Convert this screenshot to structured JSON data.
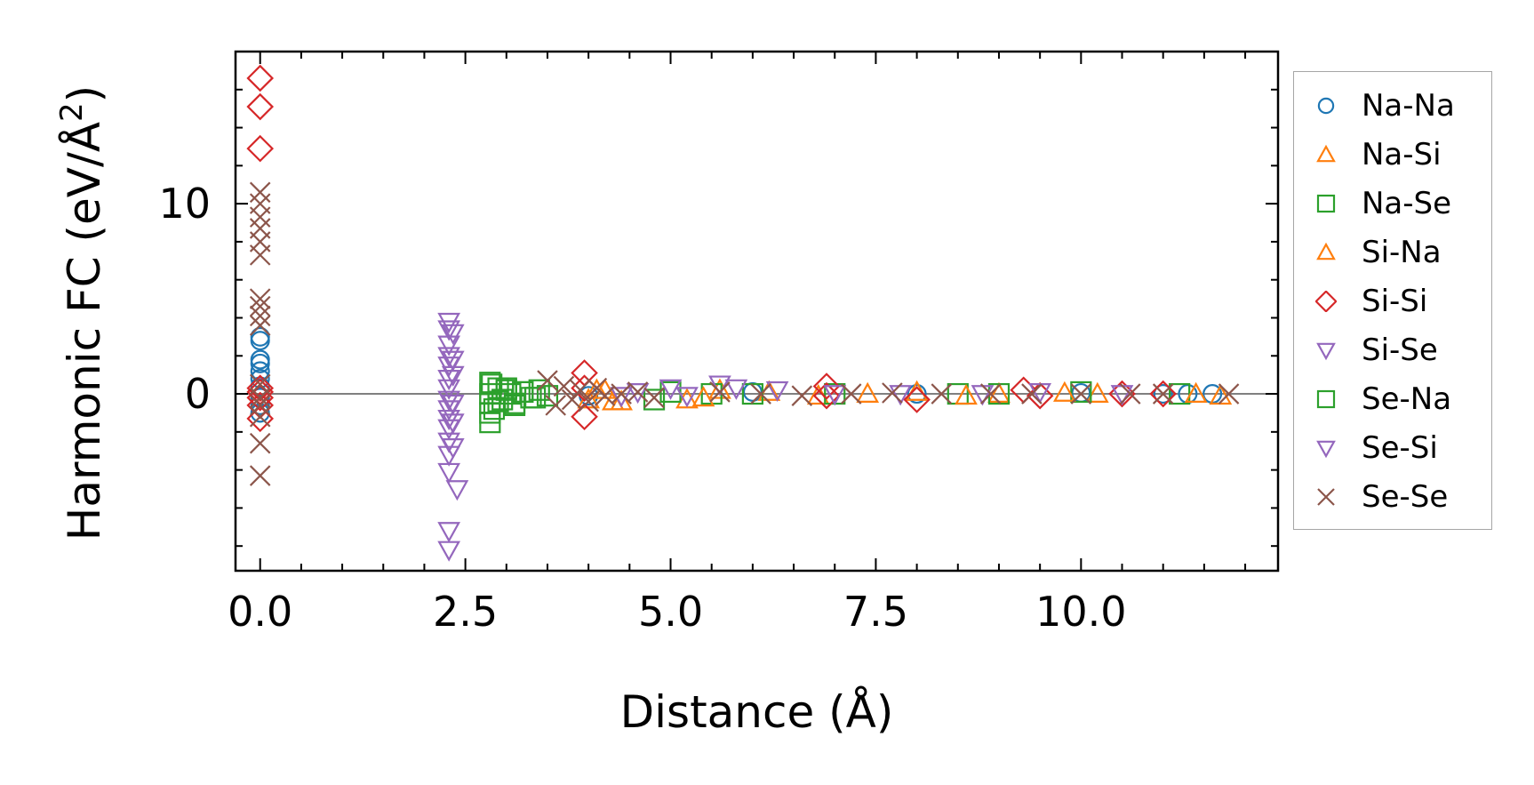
{
  "chart_data": {
    "type": "scatter",
    "xlabel": "Distance (Å)",
    "ylabel_base": "Harmonic FC (eV/Å",
    "ylabel_sup": "2",
    "ylabel_close": ")",
    "xlim": [
      -0.3,
      12.4
    ],
    "ylim": [
      -9.3,
      18.0
    ],
    "xticks": [
      0.0,
      2.5,
      5.0,
      7.5,
      10.0
    ],
    "xtick_labels": [
      "0.0",
      "2.5",
      "5.0",
      "7.5",
      "10.0"
    ],
    "yticks": [
      0,
      10
    ],
    "ytick_labels": [
      "0",
      "10"
    ],
    "zero_line": 0,
    "legend_position": "outside-right",
    "series": [
      {
        "name": "Na-Na",
        "marker": "circle",
        "color": "#1f77b4",
        "x": [
          0,
          0,
          0,
          0,
          0,
          0,
          0,
          0,
          0,
          0,
          4.0,
          6.0,
          8.0,
          10.0,
          11.0,
          11.3,
          11.6
        ],
        "y": [
          3.0,
          2.8,
          1.8,
          1.6,
          1.2,
          0.8,
          0.4,
          -0.2,
          -0.6,
          -1.0,
          -0.1,
          0.1,
          0.0,
          0.05,
          0.0,
          0.0,
          0.0
        ]
      },
      {
        "name": "Na-Si",
        "marker": "triangle-up",
        "color": "#ff7f0e",
        "x": [
          4.0,
          4.2,
          4.4,
          5.2,
          5.6,
          6.8,
          8.0,
          9.0,
          10.2,
          11.7
        ],
        "y": [
          -0.3,
          0.2,
          -0.4,
          -0.3,
          0.2,
          -0.1,
          0.1,
          0.0,
          0.0,
          -0.1
        ]
      },
      {
        "name": "Na-Se",
        "marker": "square",
        "color": "#2ca02c",
        "x": [
          2.8,
          2.8,
          2.8,
          2.8,
          2.8,
          2.85,
          2.9,
          2.95,
          3.0,
          3.05,
          3.1,
          3.2,
          3.3,
          3.4,
          3.5,
          4.8,
          5.0,
          5.5,
          7.0,
          8.5,
          10.0,
          11.2
        ],
        "y": [
          -1.5,
          -1.0,
          -0.5,
          0.0,
          0.6,
          -0.8,
          0.3,
          -0.3,
          0.2,
          0.0,
          -0.5,
          0.1,
          -0.2,
          0.2,
          -0.1,
          -0.3,
          0.1,
          0.0,
          0.0,
          0.0,
          0.1,
          0.0
        ]
      },
      {
        "name": "Si-Na",
        "marker": "triangle-up",
        "color": "#ff7f0e",
        "x": [
          4.1,
          4.3,
          5.4,
          6.2,
          7.4,
          8.6,
          9.8,
          11.4
        ],
        "y": [
          0.2,
          -0.4,
          -0.2,
          0.1,
          0.0,
          -0.1,
          0.05,
          0.0
        ]
      },
      {
        "name": "Si-Si",
        "marker": "diamond",
        "color": "#d62728",
        "x": [
          0,
          0,
          0,
          0,
          0,
          0,
          0,
          0,
          3.95,
          3.95,
          3.95,
          6.9,
          6.9,
          8.0,
          9.3,
          9.5,
          10.5,
          11.0
        ],
        "y": [
          16.6,
          15.1,
          12.9,
          0.3,
          0.1,
          -0.2,
          -0.6,
          -1.3,
          1.1,
          0.3,
          -1.2,
          0.4,
          -0.1,
          -0.3,
          0.2,
          -0.1,
          0.0,
          0.0
        ]
      },
      {
        "name": "Si-Se",
        "marker": "triangle-down",
        "color": "#9467bd",
        "x": [
          2.3,
          2.3,
          2.3,
          2.3,
          2.3,
          2.3,
          2.3,
          2.3,
          2.3,
          2.3,
          2.3,
          2.3,
          2.3,
          2.3,
          2.3,
          2.3,
          4.4,
          5.0,
          5.6,
          6.3,
          7.8,
          9.5
        ],
        "y": [
          3.8,
          3.4,
          2.6,
          2.0,
          1.5,
          0.8,
          0.3,
          -0.3,
          -0.8,
          -1.3,
          -1.8,
          -2.5,
          -3.2,
          -4.1,
          -7.2,
          -8.2,
          -0.1,
          0.3,
          0.5,
          0.2,
          0.0,
          0.1
        ]
      },
      {
        "name": "Se-Na",
        "marker": "square",
        "color": "#2ca02c",
        "x": [
          2.82,
          2.9,
          3.0,
          3.1,
          3.2,
          3.35,
          6.0,
          9.0
        ],
        "y": [
          0.5,
          -0.4,
          0.3,
          -0.6,
          0.1,
          -0.2,
          0.0,
          0.0
        ]
      },
      {
        "name": "Se-Si",
        "marker": "triangle-down",
        "color": "#9467bd",
        "x": [
          2.35,
          2.35,
          2.35,
          2.35,
          2.35,
          2.35,
          2.4,
          4.6,
          5.2,
          5.8,
          7.0,
          8.8,
          10.5
        ],
        "y": [
          3.2,
          1.8,
          1.0,
          -0.5,
          -1.5,
          -2.8,
          -5.0,
          0.1,
          -0.1,
          0.3,
          0.0,
          0.0,
          0.0
        ]
      },
      {
        "name": "Se-Se",
        "marker": "x",
        "color": "#8c564b",
        "x": [
          0,
          0,
          0,
          0,
          0,
          0,
          0,
          0,
          0,
          0,
          0,
          0,
          0,
          0,
          0,
          0,
          3.5,
          3.6,
          3.7,
          3.8,
          3.9,
          4.0,
          4.1,
          4.2,
          4.4,
          4.6,
          4.8,
          5.6,
          6.1,
          6.6,
          7.2,
          7.7,
          8.3,
          8.9,
          9.4,
          10.0,
          10.6,
          11.0,
          11.8
        ],
        "y": [
          10.6,
          10.0,
          9.3,
          8.7,
          8.0,
          7.3,
          5.0,
          4.6,
          4.1,
          3.6,
          0.5,
          -0.2,
          -0.6,
          -1.2,
          -2.6,
          -4.3,
          0.7,
          -0.6,
          0.4,
          -0.3,
          0.2,
          -0.4,
          0.3,
          -0.1,
          0.0,
          0.1,
          -0.2,
          0.1,
          0.0,
          -0.1,
          0.0,
          0.05,
          0.0,
          0.0,
          0.0,
          0.0,
          0.0,
          0.0,
          0.0
        ]
      }
    ]
  }
}
